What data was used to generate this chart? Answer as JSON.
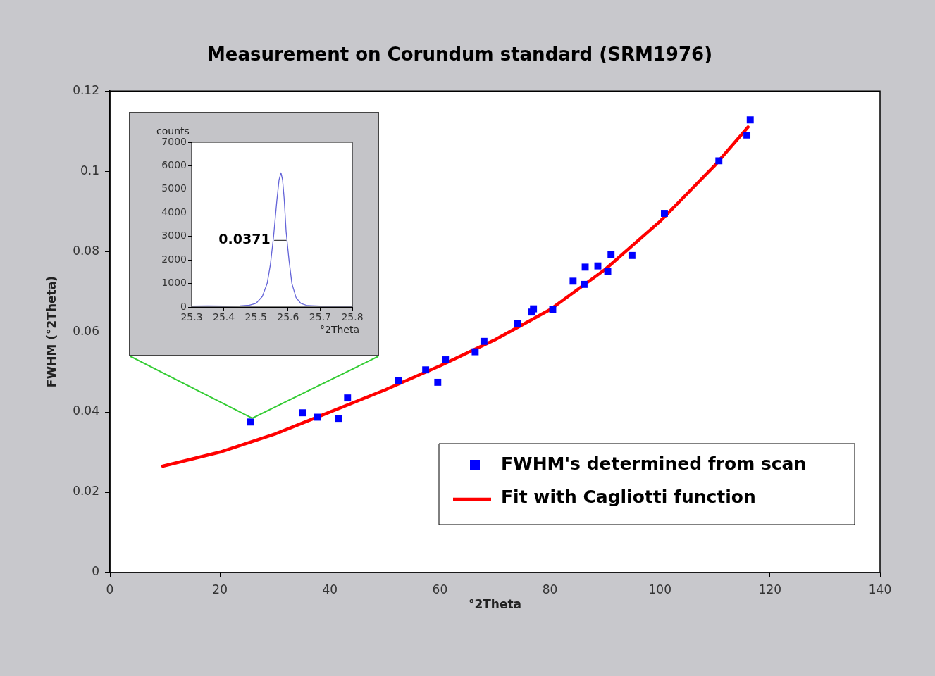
{
  "chart_data": [
    {
      "type": "scatter",
      "title": "Measurement on Corundum standard (SRM1976)",
      "xlabel": "°2Theta",
      "ylabel": "FWHM (°2Theta)",
      "xlim": [
        0,
        140
      ],
      "xticks": [
        0,
        20,
        40,
        60,
        80,
        100,
        120,
        140
      ],
      "ylim": [
        0,
        0.12
      ],
      "yticks": [
        0,
        0.02,
        0.04,
        0.06,
        0.08,
        0.1,
        0.12
      ],
      "grid": false,
      "legend": "bottom right",
      "series": [
        {
          "name": "FWHM's determined from scan",
          "marker": "square",
          "color": "#0000ff",
          "x": [
            25.5,
            35.0,
            37.7,
            41.6,
            43.2,
            52.4,
            57.4,
            59.6,
            61.0,
            66.4,
            68.0,
            74.1,
            76.7,
            77.0,
            80.5,
            84.2,
            86.2,
            86.4,
            88.7,
            90.5,
            91.1,
            94.9,
            100.8,
            110.7,
            115.8,
            116.4
          ],
          "values": [
            0.0375,
            0.0398,
            0.0387,
            0.0384,
            0.0435,
            0.0479,
            0.0505,
            0.0474,
            0.053,
            0.055,
            0.0576,
            0.062,
            0.0649,
            0.0657,
            0.0656,
            0.0726,
            0.0718,
            0.0761,
            0.0764,
            0.075,
            0.0792,
            0.079,
            0.0895,
            0.1026,
            0.109,
            0.1128
          ]
        },
        {
          "name": "Fit with Cagliotti function",
          "type": "line",
          "marker": "none",
          "color": "#ff0000",
          "x": [
            9.6,
            20,
            30,
            40,
            50,
            60,
            70,
            80,
            90,
            100,
            105,
            110,
            116
          ],
          "values": [
            0.0265,
            0.03,
            0.0345,
            0.04,
            0.0455,
            0.0515,
            0.058,
            0.0655,
            0.0755,
            0.0875,
            0.0945,
            0.1015,
            0.111
          ]
        }
      ]
    },
    {
      "type": "line",
      "xlabel": "°2Theta",
      "ylabel": "counts",
      "xlim": [
        25.3,
        25.8
      ],
      "xticks": [
        25.3,
        25.4,
        25.5,
        25.6,
        25.7,
        25.8
      ],
      "ylim": [
        0,
        7000
      ],
      "yticks": [
        0,
        1000,
        2000,
        3000,
        4000,
        5000,
        6000,
        7000
      ],
      "grid": false,
      "series": [
        {
          "color": "#6464d8",
          "x": [
            25.3,
            25.35,
            25.4,
            25.45,
            25.48,
            25.5,
            25.52,
            25.535,
            25.545,
            25.555,
            25.565,
            25.572,
            25.578,
            25.583,
            25.588,
            25.594,
            25.603,
            25.612,
            25.625,
            25.64,
            25.66,
            25.7,
            25.75,
            25.8
          ],
          "values": [
            40,
            50,
            40,
            50,
            80,
            150,
            450,
            1000,
            1800,
            3000,
            4500,
            5400,
            5700,
            5400,
            4600,
            3200,
            2000,
            1000,
            400,
            150,
            60,
            40,
            40,
            40
          ]
        },
        {
          "color": "#404040",
          "x": [
            25.558,
            25.594
          ],
          "values": [
            2830,
            2830
          ]
        }
      ],
      "annotations": [
        {
          "text": "0.0371",
          "x": 25.558,
          "y": 2830
        }
      ]
    }
  ]
}
